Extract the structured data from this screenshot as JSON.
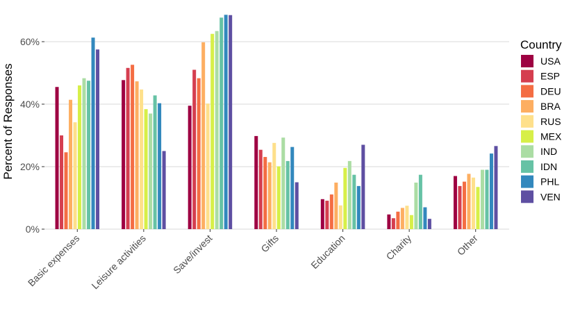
{
  "chart_data": {
    "type": "bar",
    "ylabel": "Percent of Responses",
    "ylim": [
      0,
      70
    ],
    "yticks": [
      0,
      20,
      40,
      60
    ],
    "ytick_labels": [
      "0%",
      "20%",
      "40%",
      "60%"
    ],
    "grid": true,
    "legend": {
      "title": "Country",
      "position": "right"
    },
    "categories": [
      "Basic expenses",
      "Leisure activities",
      "Save/invest",
      "Gifts",
      "Education",
      "Charity",
      "Other"
    ],
    "series": [
      {
        "name": "USA",
        "color": "#9E0142",
        "values": [
          45.5,
          47.7,
          39.5,
          29.8,
          9.6,
          4.7,
          17.0
        ]
      },
      {
        "name": "ESP",
        "color": "#D53E4F",
        "values": [
          30.0,
          51.6,
          51.0,
          25.4,
          9.1,
          3.5,
          13.8
        ]
      },
      {
        "name": "DEU",
        "color": "#F46D43",
        "values": [
          24.6,
          52.6,
          48.3,
          23.1,
          11.1,
          5.6,
          15.2
        ]
      },
      {
        "name": "BRA",
        "color": "#FDAE61",
        "values": [
          41.4,
          47.3,
          59.8,
          21.4,
          14.9,
          6.8,
          17.7
        ]
      },
      {
        "name": "RUS",
        "color": "#FEE08B",
        "values": [
          34.2,
          44.7,
          40.2,
          27.6,
          7.6,
          7.5,
          16.5
        ]
      },
      {
        "name": "MEX",
        "color": "#D7EF48",
        "values": [
          46.0,
          38.4,
          62.5,
          20.1,
          19.6,
          4.5,
          13.5
        ]
      },
      {
        "name": "IND",
        "color": "#ABDDA4",
        "values": [
          48.3,
          37.0,
          63.4,
          29.3,
          21.8,
          14.9,
          19.0
        ]
      },
      {
        "name": "IDN",
        "color": "#66C2A5",
        "values": [
          47.5,
          42.8,
          67.7,
          21.8,
          17.4,
          17.4,
          19.0
        ]
      },
      {
        "name": "PHL",
        "color": "#3288BD",
        "values": [
          61.3,
          40.3,
          68.6,
          26.3,
          13.8,
          7.0,
          24.2
        ]
      },
      {
        "name": "VEN",
        "color": "#5E4FA2",
        "values": [
          57.5,
          25.0,
          68.5,
          15.0,
          27.0,
          3.3,
          26.6
        ]
      }
    ]
  }
}
